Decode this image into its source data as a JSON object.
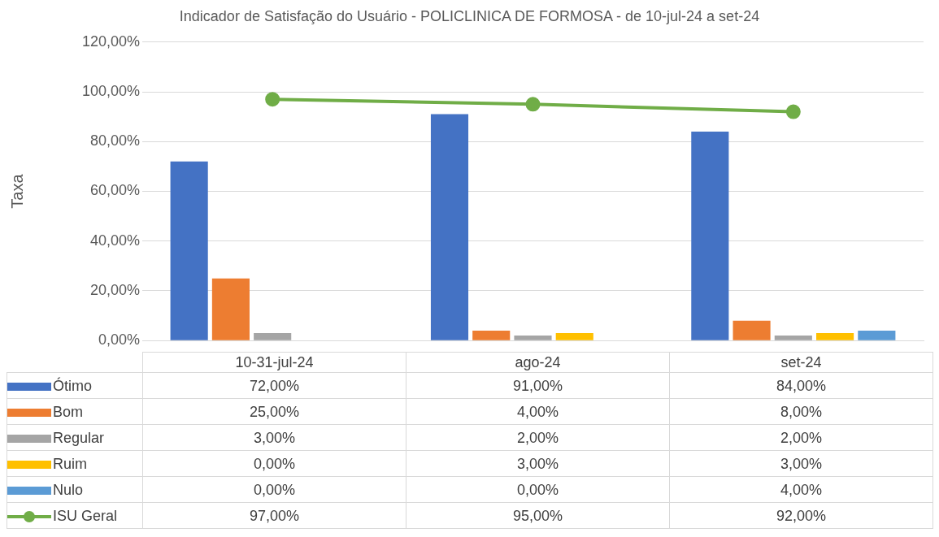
{
  "chart_data": {
    "type": "bar",
    "title": "Indicador de Satisfação do Usuário - POLICLINICA DE FORMOSA - de 10-jul-24 a set-24",
    "ylabel": "Taxa",
    "categories": [
      "10-31-jul-24",
      "ago-24",
      "set-24"
    ],
    "series": [
      {
        "name": "Ótimo",
        "color": "#4472c4",
        "values": [
          72,
          91,
          84
        ],
        "value_labels": [
          "72,00%",
          "91,00%",
          "84,00%"
        ]
      },
      {
        "name": "Bom",
        "color": "#ed7d31",
        "values": [
          25,
          4,
          8
        ],
        "value_labels": [
          "25,00%",
          "4,00%",
          "8,00%"
        ]
      },
      {
        "name": "Regular",
        "color": "#a5a5a5",
        "values": [
          3,
          2,
          2
        ],
        "value_labels": [
          "3,00%",
          "2,00%",
          "2,00%"
        ]
      },
      {
        "name": "Ruim",
        "color": "#ffc000",
        "values": [
          0,
          3,
          3
        ],
        "value_labels": [
          "0,00%",
          "3,00%",
          "3,00%"
        ]
      },
      {
        "name": "Nulo",
        "color": "#5b9bd5",
        "values": [
          0,
          0,
          4
        ],
        "value_labels": [
          "0,00%",
          "0,00%",
          "4,00%"
        ]
      },
      {
        "name": "ISU Geral",
        "type": "line",
        "color": "#70ad47",
        "marker": "circle",
        "values": [
          97,
          95,
          92
        ],
        "value_labels": [
          "97,00%",
          "95,00%",
          "92,00%"
        ]
      }
    ],
    "ylim": [
      0,
      120
    ],
    "yticks": [
      {
        "value": 0,
        "label": "0,00%"
      },
      {
        "value": 20,
        "label": "20,00%"
      },
      {
        "value": 40,
        "label": "40,00%"
      },
      {
        "value": 60,
        "label": "60,00%"
      },
      {
        "value": 80,
        "label": "80,00%"
      },
      {
        "value": 100,
        "label": "100,00%"
      },
      {
        "value": 120,
        "label": "120,00%"
      }
    ],
    "grid": "y",
    "legend": "bottom"
  }
}
